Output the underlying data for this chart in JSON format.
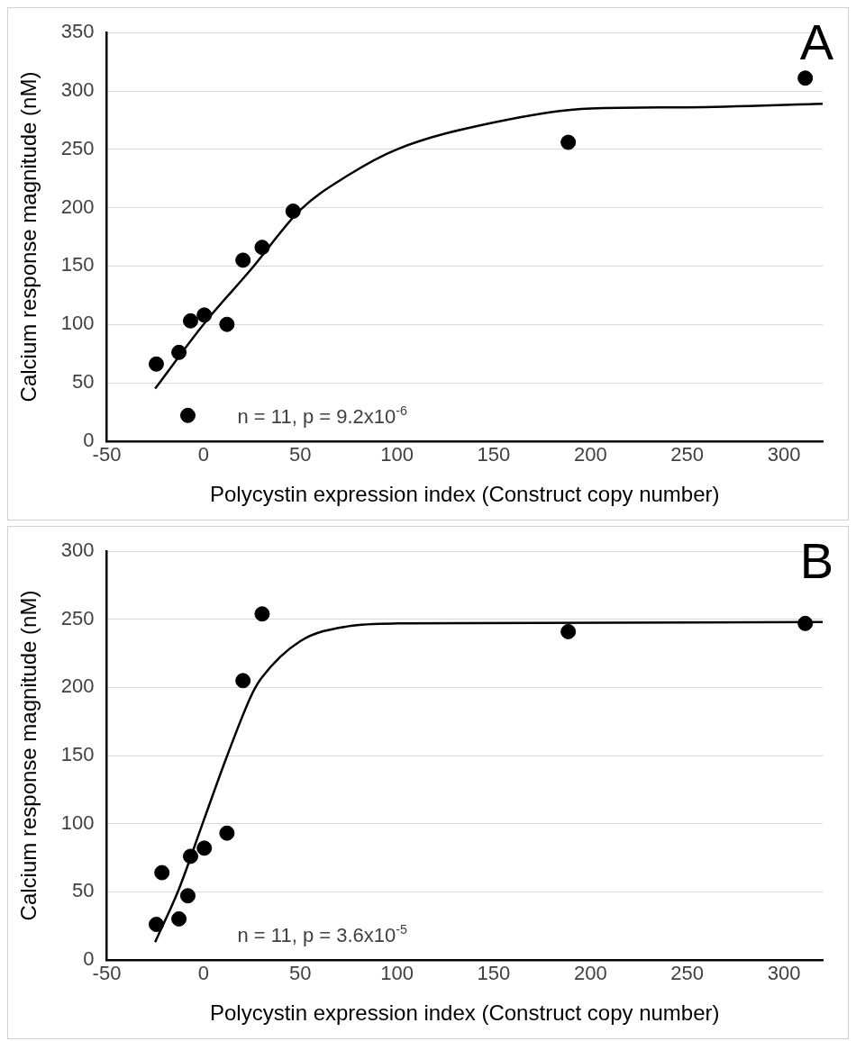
{
  "chart_data": [
    {
      "type": "scatter",
      "title": "A",
      "xlabel": "Polycystin expression index (Construct copy number)",
      "ylabel": "Calcium response magnitude (nM)",
      "annotations": [
        "n = 11, p = 9.2x10$^{-6}$"
      ],
      "xlim": [
        -50,
        320
      ],
      "xticks": [
        -50,
        0,
        50,
        100,
        150,
        200,
        250,
        300
      ],
      "ylim": [
        0,
        350
      ],
      "yticks": [
        0,
        50,
        100,
        150,
        200,
        250,
        300,
        350
      ],
      "grid": "y",
      "legend": false,
      "marker": "circle",
      "series": [
        {
          "color": "#000000",
          "x": [
            -24.4,
            -12.7,
            -6.7,
            0.4,
            12.1,
            20.4,
            30.3,
            46.3,
            188.5,
            311,
            -8.1
          ],
          "values": [
            66,
            76,
            103,
            108,
            100,
            155,
            166,
            197,
            256,
            311,
            22
          ]
        },
        {
          "type": "line",
          "color": "#000000",
          "marker": "none",
          "line_style": "solid",
          "x": [
            -25,
            0,
            25,
            50,
            75,
            100,
            150,
            200,
            250,
            320
          ],
          "values": [
            45,
            100,
            148,
            198,
            228,
            250,
            273,
            285,
            286,
            289
          ]
        }
      ]
    },
    {
      "type": "scatter",
      "title": "B",
      "xlabel": "Polycystin expression index (Construct copy number)",
      "ylabel": "Calcium response magnitude (nM)",
      "annotations": [
        "n = 11, p = 3.6x10$^{-5}$"
      ],
      "xlim": [
        -50,
        320
      ],
      "xticks": [
        -50,
        0,
        50,
        100,
        150,
        200,
        250,
        300
      ],
      "ylim": [
        0,
        300
      ],
      "yticks": [
        0,
        50,
        100,
        150,
        200,
        250,
        300
      ],
      "grid": "y",
      "legend": false,
      "marker": "circle",
      "series": [
        {
          "color": "#000000",
          "x": [
            -24.4,
            -21.5,
            -12.7,
            -8.1,
            -6.7,
            0.4,
            12.1,
            20.4,
            30.3,
            188.5,
            311
          ],
          "values": [
            26,
            64,
            30,
            47,
            76,
            82,
            93,
            205,
            254,
            241,
            247
          ]
        },
        {
          "type": "line",
          "color": "#000000",
          "marker": "none",
          "line_style": "solid",
          "x": [
            -25,
            -12.7,
            0,
            12,
            25,
            30,
            50,
            75,
            100,
            320
          ],
          "values": [
            13,
            52,
            102,
            149,
            195,
            207,
            234,
            245,
            247,
            248
          ]
        }
      ]
    }
  ]
}
